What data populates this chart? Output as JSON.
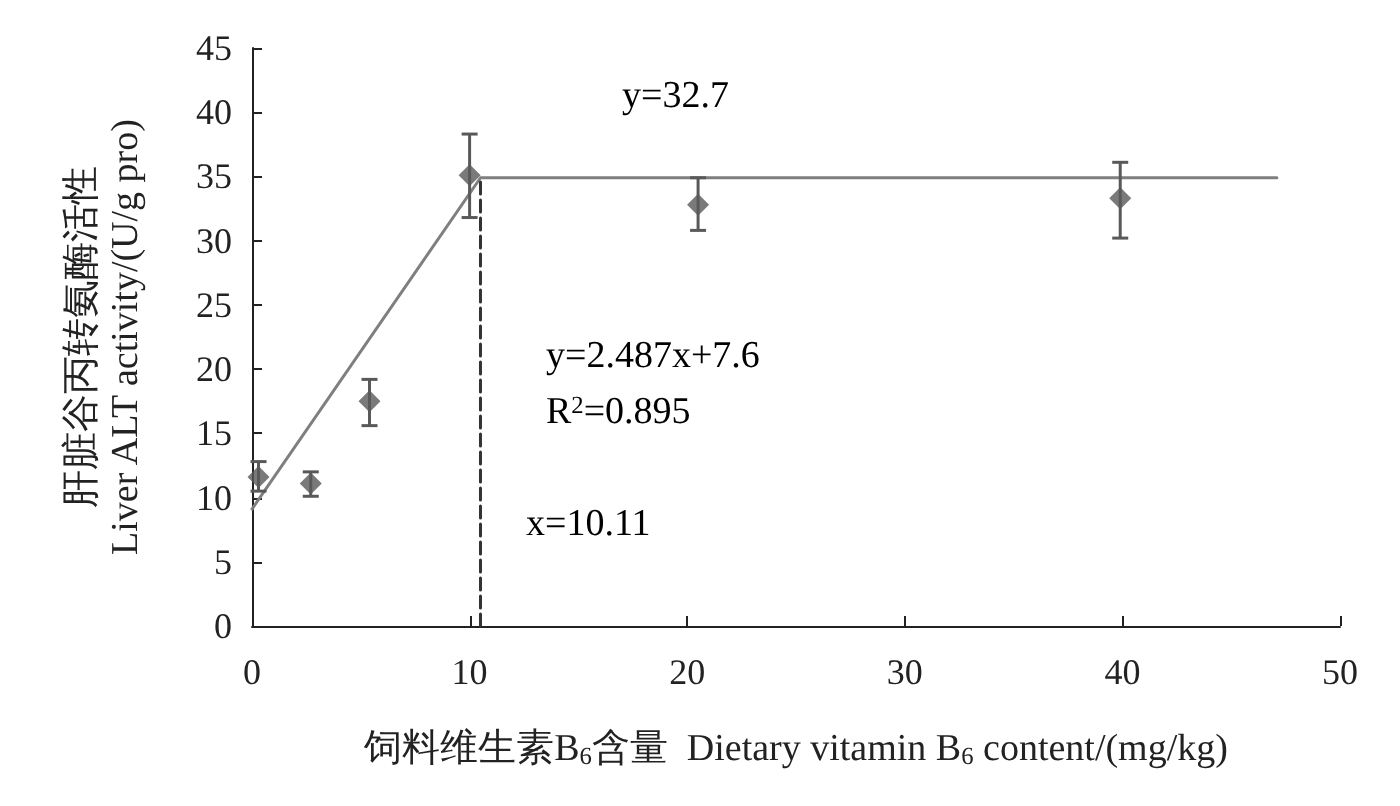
{
  "chart_data": {
    "type": "scatter",
    "xlabel": "饲料维生素B$_{6}$含量  Dietary vitamin B$_{6}$ content/(mg/kg)",
    "ylabel": "肝脏谷丙转氨酶活性\nLiver ALT activity/(U/g pro)",
    "xlim": [
      0,
      50
    ],
    "xticks": [
      0,
      10,
      20,
      30,
      40,
      50
    ],
    "ylim": [
      0,
      45
    ],
    "yticks": [
      0,
      5,
      10,
      15,
      20,
      25,
      30,
      35,
      40,
      45
    ],
    "grid": false,
    "marker": "diamond",
    "series": [
      {
        "color": "#595959",
        "x": [
          0.3,
          2.7,
          5.4,
          10,
          20.5,
          39.9
        ],
        "values": [
          11.6,
          11.1,
          17.5,
          35.1,
          32.8,
          33.3
        ],
        "errors": [
          [
            10.5,
            12.8
          ],
          [
            10.1,
            12.0
          ],
          [
            15.6,
            19.2
          ],
          [
            31.8,
            38.3
          ],
          [
            30.8,
            34.9
          ],
          [
            30.2,
            36.1
          ]
        ]
      },
      {
        "type": "line",
        "color": "#7f7f7f",
        "marker": "none",
        "line_style": "solid",
        "x": [
          0,
          10.5,
          47.1
        ],
        "values": [
          9.1,
          34.9,
          34.9
        ]
      },
      {
        "type": "line",
        "color": "#333333",
        "marker": "none",
        "line_style": "dashed",
        "x": [
          10.5,
          10.5
        ],
        "values": [
          0,
          34.9
        ]
      }
    ],
    "annotations": [
      "y=32.7",
      "y=2.487x+7.6",
      "R$^{2}$=0.895",
      "x=10.11"
    ]
  }
}
